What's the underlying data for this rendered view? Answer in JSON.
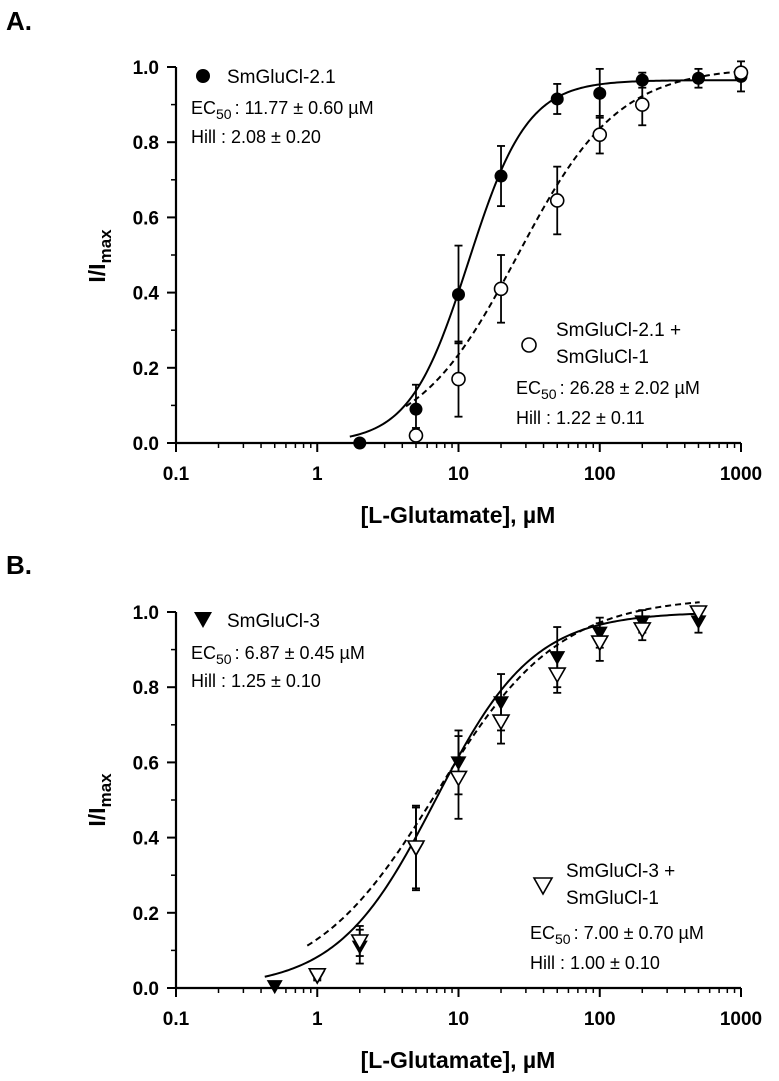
{
  "chart_data": [
    {
      "type": "scatter",
      "panel_label": "A.",
      "xlabel": "[L-Glutamate], µM",
      "ylabel_main": "I/I",
      "ylabel_sub": "max",
      "xscale": "log",
      "xlim": [
        0.1,
        1000
      ],
      "ylim": [
        0,
        1.0
      ],
      "xticks": [
        0.1,
        1,
        10,
        100,
        1000
      ],
      "xtick_labels": [
        "0.1",
        "1",
        "10",
        "100",
        "1000"
      ],
      "yticks": [
        0,
        0.2,
        0.4,
        0.6,
        0.8,
        1.0
      ],
      "ytick_labels": [
        "0.0",
        "0.2",
        "0.4",
        "0.6",
        "0.8",
        "1.0"
      ],
      "grid": false,
      "series": [
        {
          "name": "SmGluCl-2.1",
          "marker": "filled-circle",
          "line": "solid",
          "ec50_label": "EC",
          "ec50_sub": "50",
          "ec50_value": ": 11.77 ± 0.60 µM",
          "hill_text": "Hill : 2.08 ± 0.20",
          "fit": {
            "ec50": 11.77,
            "hill": 2.08,
            "top": 0.965
          },
          "x": [
            2,
            5,
            10,
            20,
            50,
            100,
            200,
            500,
            1000
          ],
          "y": [
            0.0,
            0.09,
            0.395,
            0.71,
            0.915,
            0.93,
            0.965,
            0.97,
            0.975
          ],
          "err": [
            0,
            0.065,
            0.13,
            0.08,
            0.04,
            0.065,
            0.02,
            0.025,
            0.04
          ]
        },
        {
          "name_line1": "SmGluCl-2.1 +",
          "name_line2": "SmGluCl-1",
          "marker": "open-circle",
          "line": "dashed",
          "ec50_label": "EC",
          "ec50_sub": "50",
          "ec50_value": ": 26.28 ± 2.02 µM",
          "hill_text": "Hill : 1.22 ± 0.11",
          "fit": {
            "ec50": 26.28,
            "hill": 1.22,
            "top": 1.0
          },
          "x": [
            5,
            10,
            20,
            50,
            100,
            200,
            1000
          ],
          "y": [
            0.02,
            0.17,
            0.41,
            0.645,
            0.82,
            0.9,
            0.985
          ],
          "err": [
            0.02,
            0.1,
            0.09,
            0.09,
            0.05,
            0.055,
            0.01
          ]
        }
      ]
    },
    {
      "type": "scatter",
      "panel_label": "B.",
      "xlabel": "[L-Glutamate], µM",
      "ylabel_main": "I/I",
      "ylabel_sub": "max",
      "xscale": "log",
      "xlim": [
        0.1,
        1000
      ],
      "ylim": [
        0,
        1.0
      ],
      "xticks": [
        0.1,
        1,
        10,
        100,
        1000
      ],
      "xtick_labels": [
        "0.1",
        "1",
        "10",
        "100",
        "1000"
      ],
      "yticks": [
        0,
        0.2,
        0.4,
        0.6,
        0.8,
        1.0
      ],
      "ytick_labels": [
        "0.0",
        "0.2",
        "0.4",
        "0.6",
        "0.8",
        "1.0"
      ],
      "grid": false,
      "series": [
        {
          "name": "SmGluCl-3",
          "marker": "filled-triangle-down",
          "line": "solid",
          "ec50_label": "EC",
          "ec50_sub": "50",
          "ec50_value": ": 6.87 ± 0.45 µM",
          "hill_text": "Hill : 1.25 ± 0.10",
          "fit": {
            "ec50": 6.87,
            "hill": 1.25,
            "top": 1.0
          },
          "x": [
            0.5,
            1,
            2,
            5,
            10,
            20,
            50,
            100,
            200,
            500
          ],
          "y": [
            0.005,
            0.03,
            0.11,
            0.37,
            0.6,
            0.76,
            0.88,
            0.945,
            0.975,
            0.975
          ],
          "err": [
            0,
            0.01,
            0.045,
            0.11,
            0.085,
            0.075,
            0.08,
            0.04,
            0.03,
            0.03
          ]
        },
        {
          "name_line1": "SmGluCl-3 +",
          "name_line2": "SmGluCl-1",
          "marker": "open-triangle-down",
          "line": "dashed",
          "ec50_label": "EC",
          "ec50_sub": "50",
          "ec50_value": ": 7.00 ± 0.70 µM",
          "hill_text": "Hill : 1.00 ± 0.10",
          "fit": {
            "ec50": 7.0,
            "hill": 1.0,
            "top": 1.04
          },
          "x": [
            1,
            2,
            5,
            10,
            20,
            50,
            100,
            200,
            500
          ],
          "y": [
            0.035,
            0.125,
            0.375,
            0.56,
            0.71,
            0.835,
            0.92,
            0.955,
            1.0
          ],
          "err": [
            0.01,
            0.04,
            0.11,
            0.11,
            0.06,
            0.05,
            0.05,
            0.03,
            0.01
          ]
        }
      ]
    }
  ]
}
